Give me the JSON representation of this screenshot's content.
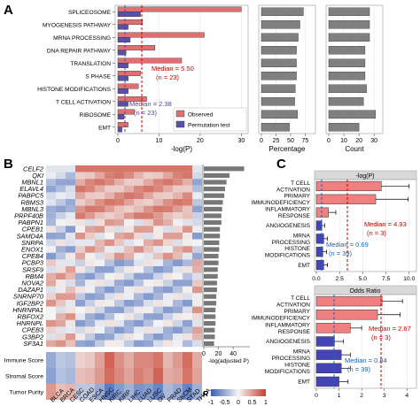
{
  "panels": {
    "a": "A",
    "b": "B",
    "c": "C"
  },
  "colors": {
    "observed": "#d9534f",
    "permutation": "#5b50a8",
    "median_obs": "#cc0000",
    "median_perm": "#5a3fa0",
    "bar_gray": "#808080",
    "low": "#3a5fb4",
    "mid": "#f4f4f4",
    "high": "#c8402e",
    "red_bar": "#f08080",
    "blue_bar": "#4444b8",
    "facet_strip": "#d9d9d9"
  },
  "chart_data": [
    {
      "type": "bar",
      "id": "A-left",
      "categories": [
        "SPLICEOSOME",
        "MYOGENESIS PATHWAY",
        "MRNA PROCESSING",
        "DNA REPAIR PATHWAY",
        "TRANSLATION",
        "S PHASE",
        "HISTONE MODIFICATIONS",
        "T CELL ACTIVATION",
        "RIBOSOME",
        "EMT"
      ],
      "series": [
        {
          "name": "Observed",
          "values": [
            30,
            6,
            21,
            9,
            15.5,
            5.5,
            5,
            7,
            4,
            2.5
          ]
        },
        {
          "name": "Permutation test",
          "values": [
            5.5,
            2.5,
            3,
            2,
            2.5,
            2.5,
            2.5,
            2.5,
            1.5,
            1
          ]
        }
      ],
      "xticks": [
        "0",
        "10",
        "20",
        "30"
      ],
      "xlabel": "-log(P)",
      "xlim": [
        0,
        31
      ],
      "annotations": [
        "Median = 5.50",
        "(n = 23)",
        "Median = 2.38",
        "(n = 23)"
      ]
    },
    {
      "type": "bar",
      "id": "A-mid",
      "values": [
        72,
        66,
        63,
        60,
        60,
        60,
        58,
        57,
        62,
        48
      ],
      "xticks": [
        "0",
        "25",
        "50",
        "75"
      ],
      "xlabel": "Percentage",
      "xlim": [
        0,
        88
      ]
    },
    {
      "type": "bar",
      "id": "A-right",
      "values": [
        27,
        27,
        27,
        24,
        24,
        24,
        25,
        23,
        31,
        20
      ],
      "xticks": [
        "0",
        "10",
        "20",
        "30"
      ],
      "xlabel": "Count",
      "xlim": [
        0,
        34
      ]
    },
    {
      "type": "heatmap",
      "id": "B-heatmap",
      "rows": [
        "CELF2",
        "QKI",
        "MBNL1",
        "ELAVL4",
        "PABPC5",
        "RBMS3",
        "MBNL3",
        "PRPF40B",
        "PABPN1",
        "CPEB1",
        "SAMD4A",
        "SNRPA",
        "ENOX1",
        "CPEB4",
        "PCBP3",
        "SRSF9",
        "RBM4",
        "NOVA2",
        "DAZAP1",
        "SNRNP70",
        "IGF2BP2",
        "HNRNPA1",
        "RBFOX2",
        "HNRNPL",
        "CPEB3",
        "G3BP2",
        "SF3A1"
      ],
      "columns": [
        "BLCA",
        "BRCA",
        "CESC",
        "COAD",
        "ESCA",
        "HNSC",
        "KIRC",
        "KIRP",
        "LIHC",
        "LUAD",
        "LUSC",
        "OV",
        "PRAD",
        "SKCM",
        "STAD",
        "THCA"
      ],
      "score_rows": [
        "Immune Score",
        "Stromal Score",
        "Tumor Purity"
      ],
      "score_values": [
        [
          -0.5,
          -0.3,
          -0.35,
          0.2,
          0.25,
          0.45,
          0.8,
          0.55,
          0.4,
          0.6,
          0.6,
          0.7,
          0.35,
          0.5,
          0.75,
          0.4
        ],
        [
          -0.55,
          -0.35,
          -0.4,
          0.3,
          0.35,
          0.5,
          0.75,
          0.6,
          0.45,
          0.65,
          0.55,
          0.8,
          0.4,
          0.45,
          0.7,
          0.45
        ],
        [
          0.5,
          0.3,
          0.35,
          -0.3,
          -0.3,
          -0.5,
          -0.8,
          -0.6,
          -0.45,
          -0.65,
          -0.6,
          -0.75,
          -0.4,
          -0.5,
          -0.75,
          -0.45
        ]
      ],
      "legend_title": "R",
      "legend_ticks": [
        "-1",
        "-0.5",
        "0",
        "0.5",
        "1"
      ]
    },
    {
      "type": "bar",
      "id": "B-side",
      "values": [
        55,
        35,
        31,
        29,
        28,
        26,
        25,
        24,
        24,
        22,
        22,
        21,
        21,
        20,
        20,
        19,
        19,
        18,
        18,
        17,
        17,
        16,
        16,
        16,
        15,
        15,
        14
      ],
      "xticks": [
        "0",
        "20",
        "40"
      ],
      "xlabel": "-log(adjusted P)",
      "xlim": [
        0,
        58
      ]
    },
    {
      "type": "bar",
      "id": "C-top",
      "facet": "-log(P)",
      "categories": [
        "T CELL ACTIVATION",
        "PRIMARY IMMUNODEFICIENCY",
        "INFLAMMATORY RESPONSE",
        "ANGIOGENESIS",
        "MRNA PROCESSING",
        "HISTONE MODIFICATIONS",
        "EMT"
      ],
      "values": [
        7.0,
        6.4,
        1.3,
        0.6,
        0.8,
        0.7,
        0.8
      ],
      "errors": [
        3.0,
        3.5,
        0.8,
        0.3,
        0.4,
        0.4,
        0.4
      ],
      "xticks": [
        "0.0",
        "2.5",
        "5.0",
        "7.5",
        "10.0"
      ],
      "xlim": [
        0,
        10.5
      ],
      "annotations": [
        "Median = 4.93",
        "(n = 3)",
        "Median = 0.69",
        "(n = 39)"
      ]
    },
    {
      "type": "bar",
      "id": "C-bottom",
      "facet": "Odds Ratio",
      "categories": [
        "T CELL ACTIVATION",
        "PRIMARY IMMUNODEFICIENCY",
        "INFLAMMATORY RESPONSE",
        "ANGIOGENESIS",
        "MRNA PROCESSING",
        "HISTONE MODIFICATIONS",
        "EMT"
      ],
      "values": [
        2.9,
        2.7,
        1.5,
        0.8,
        1.1,
        1.1,
        1.0
      ],
      "errors": [
        0.9,
        1.0,
        0.5,
        0.4,
        0.4,
        0.4,
        0.4
      ],
      "xticks": [
        "0",
        "1",
        "2",
        "3",
        "4"
      ],
      "xlim": [
        0,
        4.3
      ],
      "annotations": [
        "Median = 2.67",
        "(n = 3)",
        "Median = 0.84",
        "(n = 39)"
      ]
    }
  ]
}
